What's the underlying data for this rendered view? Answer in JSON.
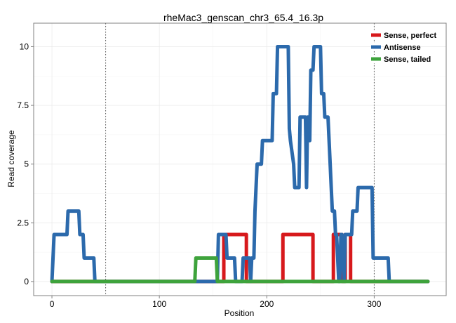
{
  "chart_data": {
    "type": "line",
    "title": "rheMac3_genscan_chr3_65.4_16.3p",
    "xlabel": "Position",
    "ylabel": "Read coverage",
    "xlim": [
      -17,
      367
    ],
    "ylim": [
      -0.6,
      11.0
    ],
    "x_ticks": [
      0,
      100,
      200,
      300
    ],
    "x_tick_labels": [
      "0",
      "100",
      "200",
      "300"
    ],
    "y_ticks": [
      0,
      2.5,
      5,
      7.5,
      10
    ],
    "y_tick_labels": [
      "0",
      "2.5",
      "5",
      "7.5",
      "10"
    ],
    "grid": true,
    "legend_position": "top-right",
    "vlines": [
      50,
      300
    ],
    "series": [
      {
        "name": "Sense, perfect",
        "color": "#d7191c",
        "points": [
          [
            0,
            0
          ],
          [
            160,
            0
          ],
          [
            160,
            2
          ],
          [
            181,
            2
          ],
          [
            181,
            0
          ],
          [
            215,
            0
          ],
          [
            215,
            2
          ],
          [
            243,
            2
          ],
          [
            243,
            0
          ],
          [
            262,
            0
          ],
          [
            262,
            2
          ],
          [
            270,
            2
          ],
          [
            270,
            0
          ],
          [
            273,
            0
          ],
          [
            273,
            2
          ],
          [
            278,
            2
          ],
          [
            278,
            0
          ],
          [
            350,
            0
          ]
        ]
      },
      {
        "name": "Antisense",
        "color": "#2c6aac",
        "points": [
          [
            0,
            0
          ],
          [
            2,
            2
          ],
          [
            14,
            2
          ],
          [
            15,
            3
          ],
          [
            25,
            3
          ],
          [
            26,
            2
          ],
          [
            29,
            2
          ],
          [
            30,
            1
          ],
          [
            39,
            1
          ],
          [
            40,
            0
          ],
          [
            154,
            0
          ],
          [
            155,
            2
          ],
          [
            162,
            2
          ],
          [
            163,
            1
          ],
          [
            170,
            1
          ],
          [
            171,
            0
          ],
          [
            177,
            0
          ],
          [
            178,
            1
          ],
          [
            184,
            1
          ],
          [
            185,
            0
          ],
          [
            186,
            1
          ],
          [
            188,
            1
          ],
          [
            189,
            3
          ],
          [
            190,
            4
          ],
          [
            191,
            5
          ],
          [
            195,
            5
          ],
          [
            196,
            6
          ],
          [
            205,
            6
          ],
          [
            206,
            8
          ],
          [
            209,
            8
          ],
          [
            210,
            10
          ],
          [
            220,
            10
          ],
          [
            221,
            6.5
          ],
          [
            222,
            6
          ],
          [
            225,
            5
          ],
          [
            226,
            4
          ],
          [
            230,
            4
          ],
          [
            231,
            7
          ],
          [
            236,
            7
          ],
          [
            237,
            4
          ],
          [
            238,
            7
          ],
          [
            239,
            7
          ],
          [
            240,
            6
          ],
          [
            241,
            9
          ],
          [
            243,
            9
          ],
          [
            244,
            10
          ],
          [
            250,
            10
          ],
          [
            251,
            8
          ],
          [
            253,
            8
          ],
          [
            254,
            7
          ],
          [
            257,
            7
          ],
          [
            258,
            6
          ],
          [
            259,
            5
          ],
          [
            261,
            3
          ],
          [
            263,
            3
          ],
          [
            264,
            2
          ],
          [
            265,
            2
          ],
          [
            266,
            1
          ],
          [
            267,
            0
          ],
          [
            268,
            0
          ],
          [
            269,
            2
          ],
          [
            270,
            2
          ],
          [
            271,
            1
          ],
          [
            272,
            0
          ],
          [
            273,
            2
          ],
          [
            279,
            2
          ],
          [
            280,
            3
          ],
          [
            284,
            3
          ],
          [
            285,
            4
          ],
          [
            298,
            4
          ],
          [
            299,
            1
          ],
          [
            313,
            1
          ],
          [
            314,
            0
          ],
          [
            350,
            0
          ]
        ]
      },
      {
        "name": "Sense, tailed",
        "color": "#3ea33c",
        "points": [
          [
            0,
            0
          ],
          [
            133,
            0
          ],
          [
            134,
            1
          ],
          [
            153,
            1
          ],
          [
            154,
            0
          ],
          [
            350,
            0
          ]
        ]
      }
    ]
  }
}
